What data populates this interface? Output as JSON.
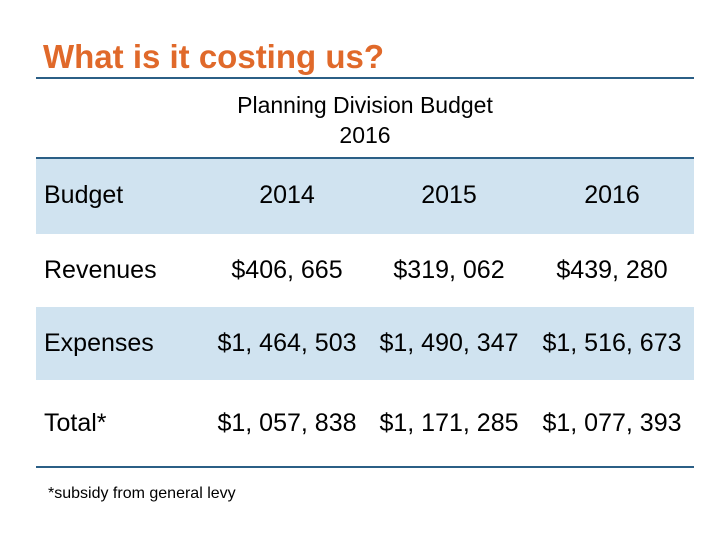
{
  "slide": {
    "title": "What is it costing us?",
    "subtitle_line1": "Planning Division Budget",
    "subtitle_line2": "2016",
    "footnote": "*subsidy from general levy"
  },
  "table": {
    "header": {
      "label": "Budget",
      "cols": [
        "2014",
        "2015",
        "2016"
      ]
    },
    "rows": [
      {
        "label": "Revenues",
        "values": [
          "$406, 665",
          "$319, 062",
          "$439, 280"
        ]
      },
      {
        "label": "Expenses",
        "values": [
          "$1, 464, 503",
          "$1, 490, 347",
          "$1, 516, 673"
        ]
      },
      {
        "label": "Total*",
        "values": [
          "$1, 057, 838",
          "$1, 171, 285",
          "$1, 077, 393"
        ]
      }
    ]
  },
  "colors": {
    "title": "#e0692a",
    "rule": "#2b5f86",
    "row_shade": "#d0e3f0"
  }
}
